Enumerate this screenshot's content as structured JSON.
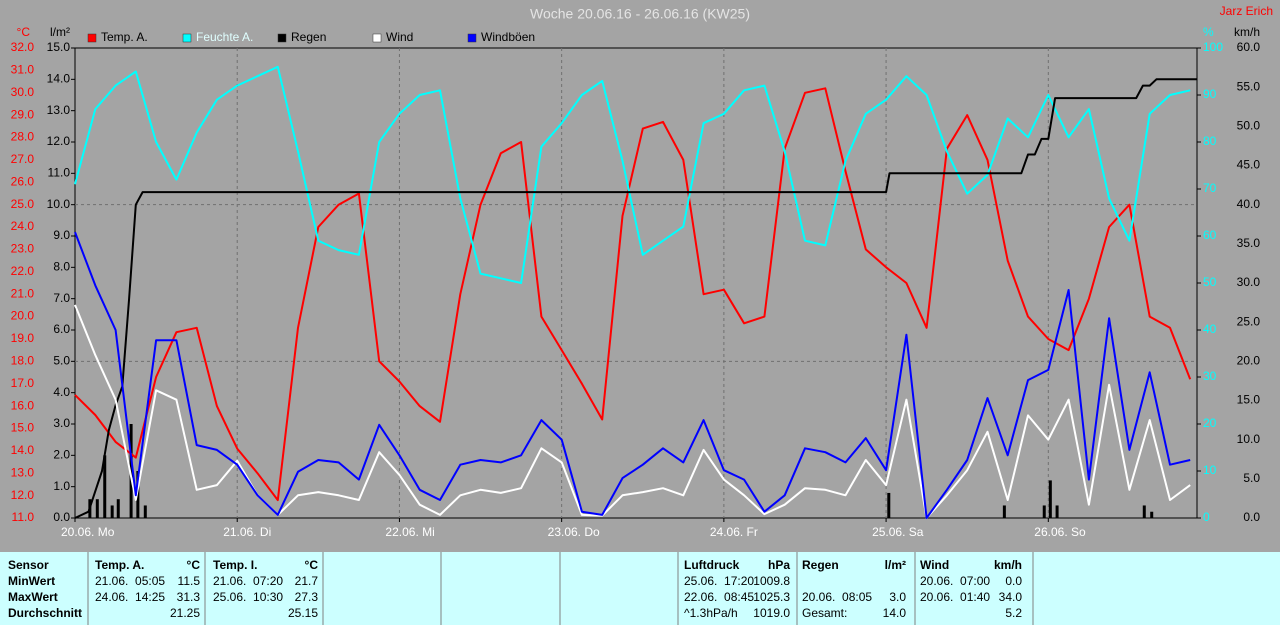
{
  "chart_data": {
    "type": "line",
    "title": "Woche 20.06.16 - 26.06.16 (KW25)",
    "author": "Jarz Erich",
    "legend": "top-left",
    "grid": true,
    "x": [
      0,
      3,
      6,
      9,
      12,
      15,
      18,
      21,
      24,
      27,
      30,
      33,
      36,
      39,
      42,
      45,
      48,
      51,
      54,
      57,
      60,
      63,
      66,
      69,
      72,
      75,
      78,
      81,
      84,
      87,
      90,
      93,
      96,
      99,
      102,
      105,
      108,
      111,
      114,
      117,
      120,
      123,
      126,
      129,
      132,
      135,
      138,
      141,
      144,
      147,
      150,
      153,
      156,
      159,
      162,
      165
    ],
    "xlim": [
      0,
      166
    ],
    "xticks": [
      {
        "value": 0,
        "label": "20.06. Mo"
      },
      {
        "value": 24,
        "label": "21.06. Di"
      },
      {
        "value": 48,
        "label": "22.06. Mi"
      },
      {
        "value": 72,
        "label": "23.06. Do"
      },
      {
        "value": 96,
        "label": "24.06. Fr"
      },
      {
        "value": 120,
        "label": "25.06. Sa"
      },
      {
        "value": 144,
        "label": "26.06. So"
      }
    ],
    "axes": [
      {
        "label": "°C",
        "color": "#ff0000",
        "side": "left",
        "lim": [
          11.0,
          32.0
        ],
        "ticks": [
          {
            "value": 11,
            "label": "11.0"
          },
          {
            "value": 12,
            "label": "12.0"
          },
          {
            "value": 13,
            "label": "13.0"
          },
          {
            "value": 14,
            "label": "14.0"
          },
          {
            "value": 15,
            "label": "15.0"
          },
          {
            "value": 16,
            "label": "16.0"
          },
          {
            "value": 17,
            "label": "17.0"
          },
          {
            "value": 18,
            "label": "18.0"
          },
          {
            "value": 19,
            "label": "19.0"
          },
          {
            "value": 20,
            "label": "20.0"
          },
          {
            "value": 21,
            "label": "21.0"
          },
          {
            "value": 22,
            "label": "22.0"
          },
          {
            "value": 23,
            "label": "23.0"
          },
          {
            "value": 24,
            "label": "24.0"
          },
          {
            "value": 25,
            "label": "25.0"
          },
          {
            "value": 26,
            "label": "26.0"
          },
          {
            "value": 27,
            "label": "27.0"
          },
          {
            "value": 28,
            "label": "28.0"
          },
          {
            "value": 29,
            "label": "29.0"
          },
          {
            "value": 30,
            "label": "30.0"
          },
          {
            "value": 31,
            "label": "31.0"
          },
          {
            "value": 32,
            "label": "32.0"
          }
        ]
      },
      {
        "label": "l/m²",
        "color": "#000000",
        "side": "left",
        "lim": [
          0.0,
          15.0
        ],
        "ticks": [
          {
            "value": 0,
            "label": "0.0"
          },
          {
            "value": 1,
            "label": "1.0"
          },
          {
            "value": 2,
            "label": "2.0"
          },
          {
            "value": 3,
            "label": "3.0"
          },
          {
            "value": 4,
            "label": "4.0"
          },
          {
            "value": 5,
            "label": "5.0"
          },
          {
            "value": 6,
            "label": "6.0"
          },
          {
            "value": 7,
            "label": "7.0"
          },
          {
            "value": 8,
            "label": "8.0"
          },
          {
            "value": 9,
            "label": "9.0"
          },
          {
            "value": 10,
            "label": "10.0"
          },
          {
            "value": 11,
            "label": "11.0"
          },
          {
            "value": 12,
            "label": "12.0"
          },
          {
            "value": 13,
            "label": "13.0"
          },
          {
            "value": 14,
            "label": "14.0"
          },
          {
            "value": 15,
            "label": "15.0"
          }
        ]
      },
      {
        "label": "%",
        "color": "#00ffff",
        "side": "right",
        "lim": [
          0,
          100
        ],
        "ticks": [
          0,
          10,
          20,
          30,
          40,
          50,
          60,
          70,
          80,
          90,
          100
        ]
      },
      {
        "label": "km/h",
        "color": "#000000",
        "side": "right",
        "lim": [
          0.0,
          60.0
        ],
        "ticks": [
          {
            "value": 0,
            "label": "0.0"
          },
          {
            "value": 5,
            "label": "5.0"
          },
          {
            "value": 10,
            "label": "10.0"
          },
          {
            "value": 15,
            "label": "15.0"
          },
          {
            "value": 20,
            "label": "20.0"
          },
          {
            "value": 25,
            "label": "25.0"
          },
          {
            "value": 30,
            "label": "30.0"
          },
          {
            "value": 35,
            "label": "35.0"
          },
          {
            "value": 40,
            "label": "40.0"
          },
          {
            "value": 45,
            "label": "45.0"
          },
          {
            "value": 50,
            "label": "50.0"
          },
          {
            "value": 55,
            "label": "55.0"
          },
          {
            "value": 60,
            "label": "60.0"
          }
        ]
      }
    ],
    "series": [
      {
        "name": "Temp. A.",
        "color": "#ff0000",
        "axis": 0,
        "values": [
          16.5,
          15.6,
          14.4,
          13.7,
          17.3,
          19.3,
          19.5,
          16.0,
          14.1,
          13.0,
          11.8,
          19.5,
          24.0,
          25.0,
          25.5,
          18.0,
          17.1,
          16.0,
          15.3,
          21.0,
          25.0,
          27.3,
          27.8,
          20.0,
          18.5,
          17.0,
          15.4,
          24.5,
          28.4,
          28.7,
          27.0,
          21.0,
          21.2,
          19.7,
          20.0,
          27.5,
          30.0,
          30.2,
          26.5,
          23.0,
          22.2,
          21.5,
          19.5,
          27.5,
          29.0,
          27.0,
          22.5,
          20.0,
          19.0,
          18.5,
          20.8,
          24.0,
          25.0,
          20.0,
          19.5,
          17.2
        ]
      },
      {
        "name": "Feuchte A.",
        "color": "#00ffff",
        "axis": 2,
        "values": [
          71,
          87,
          92,
          95,
          80,
          72,
          82,
          89,
          92,
          94,
          96,
          78,
          59,
          57,
          56,
          80,
          86,
          90,
          91,
          68,
          52,
          51,
          50,
          79,
          84,
          90,
          93,
          76,
          56,
          59,
          62,
          84,
          86,
          91,
          92,
          78,
          59,
          58,
          76,
          86,
          89,
          94,
          90,
          78,
          69,
          73,
          85,
          81,
          90,
          81,
          87,
          68,
          59,
          86,
          90,
          91
        ]
      },
      {
        "name": "Regen",
        "color": "#000000",
        "axis": 1,
        "x": [
          0,
          2,
          4,
          5,
          6,
          7,
          8,
          9,
          10,
          120,
          120.5,
          140,
          141,
          142,
          143,
          144,
          145,
          157,
          158,
          159,
          160,
          166
        ],
        "values": [
          0,
          0.2,
          1.5,
          2.8,
          3.6,
          4.2,
          7.0,
          10.0,
          10.4,
          10.4,
          11.0,
          11.0,
          11.6,
          11.6,
          12.1,
          12.1,
          13.4,
          13.4,
          13.8,
          13.8,
          14.0,
          14.0
        ],
        "bars": {
          "x": [
            2.2,
            3.3,
            4.4,
            5.5,
            6.4,
            8.3,
            9.3,
            10.4,
            120.4,
            137.5,
            143.4,
            144.3,
            145.3,
            158.2,
            159.3
          ],
          "values": [
            0.6,
            0.6,
            2.0,
            0.4,
            0.6,
            3.0,
            1.5,
            0.4,
            0.8,
            0.4,
            0.4,
            1.2,
            0.4,
            0.4,
            0.2
          ]
        }
      },
      {
        "name": "Wind",
        "color": "#ffffff",
        "axis": 3,
        "values": [
          27.2,
          20.8,
          15.1,
          2.3,
          16.3,
          15.1,
          3.6,
          4.2,
          7.3,
          2.9,
          0.4,
          2.9,
          3.3,
          2.9,
          2.3,
          8.4,
          5.5,
          1.7,
          0.4,
          2.9,
          3.6,
          3.2,
          3.8,
          8.9,
          7.1,
          0.4,
          0.3,
          2.9,
          3.3,
          3.8,
          2.9,
          8.7,
          4.9,
          2.9,
          0.5,
          1.7,
          3.8,
          3.6,
          2.9,
          7.4,
          4.2,
          15.1,
          0,
          2.9,
          6.1,
          11.0,
          2.3,
          13.1,
          10,
          15.1,
          1.7,
          17.0,
          3.6,
          12.5,
          2.3,
          4.2
        ]
      },
      {
        "name": "Windböen",
        "color": "#0000ff",
        "axis": 3,
        "values": [
          36.5,
          29.7,
          24.0,
          2.9,
          22.7,
          22.7,
          9.3,
          8.7,
          6.8,
          2.9,
          0.4,
          5.9,
          7.4,
          7.1,
          4.9,
          11.9,
          8.0,
          3.6,
          2.3,
          6.8,
          7.4,
          7.1,
          8.0,
          12.5,
          10.0,
          0.8,
          0.4,
          5.1,
          6.8,
          8.9,
          7.1,
          12.5,
          6.1,
          4.9,
          0.8,
          2.9,
          8.9,
          8.4,
          7.1,
          10.2,
          6.1,
          23.4,
          0,
          3.6,
          7.4,
          15.3,
          8.0,
          17.6,
          18.9,
          29.1,
          4.9,
          25.5,
          8.7,
          18.6,
          6.8,
          7.4
        ]
      }
    ]
  },
  "table": {
    "header": [
      "Sensor",
      "Temp. A.",
      "°C",
      "Temp. I.",
      "°C",
      "Luftdruck",
      "hPa",
      "Regen",
      "l/m²",
      "Wind",
      "km/h"
    ],
    "rows": [
      [
        "MinWert",
        "21.06.  05:05",
        "11.5",
        "21.06.  07:20",
        "21.7",
        "25.06.  17:20",
        "1009.8",
        null,
        null,
        "20.06.  07:00",
        "0.0"
      ],
      [
        "MaxWert",
        "24.06.  14:25",
        "31.3",
        "25.06.  10:30",
        "27.3",
        "22.06.  08:45",
        "1025.3",
        "20.06.  08:05",
        "3.0",
        "20.06.  01:40",
        "34.0"
      ],
      [
        "Durchschnitt",
        null,
        "21.25",
        null,
        "25.15",
        "^1.3hPa/h",
        "1019.0",
        "Gesamt:",
        "14.0",
        null,
        "5.2"
      ]
    ]
  }
}
